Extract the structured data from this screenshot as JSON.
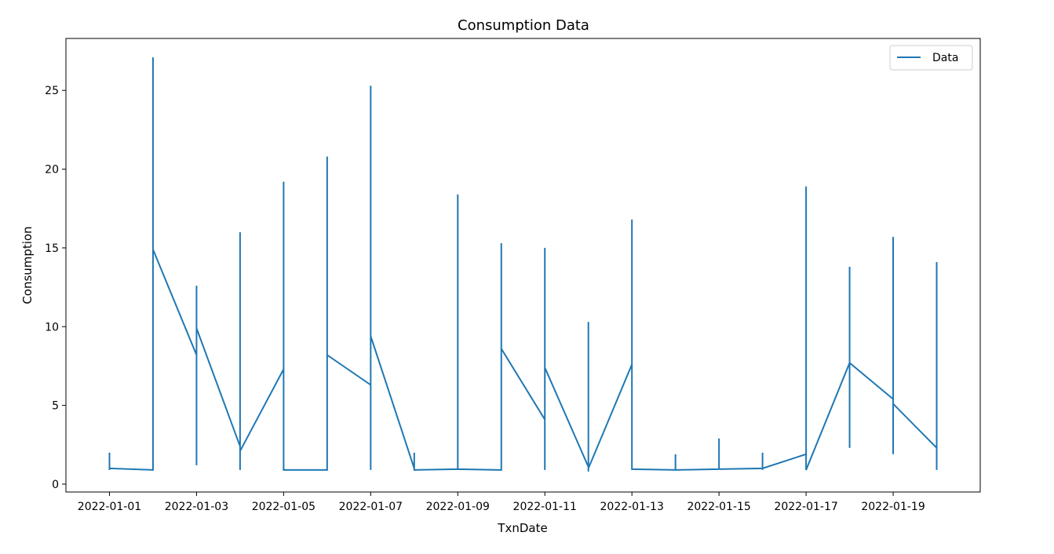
{
  "chart_data": {
    "type": "line",
    "title": "Consumption Data",
    "xlabel": "TxnDate",
    "ylabel": "Consumption",
    "xlim": [
      "2021-12-31",
      "2022-01-21"
    ],
    "ylim": [
      -0.5,
      28.3
    ],
    "x_ticks": [
      "2022-01-01",
      "2022-01-03",
      "2022-01-05",
      "2022-01-07",
      "2022-01-09",
      "2022-01-11",
      "2022-01-13",
      "2022-01-15",
      "2022-01-17",
      "2022-01-19"
    ],
    "y_ticks": [
      0,
      5,
      10,
      15,
      20,
      25
    ],
    "grid": false,
    "legend": {
      "position": "top-right",
      "entries": [
        "Data"
      ]
    },
    "series": [
      {
        "name": "Data",
        "color": "#1f77b4",
        "points": [
          [
            "2022-01-01",
            2.0
          ],
          [
            "2022-01-01",
            0.9
          ],
          [
            "2022-01-01",
            1.0
          ],
          [
            "2022-01-02",
            0.9
          ],
          [
            "2022-01-02",
            27.1
          ],
          [
            "2022-01-02",
            1.0
          ],
          [
            "2022-01-02",
            14.9
          ],
          [
            "2022-01-03",
            8.2
          ],
          [
            "2022-01-03",
            12.6
          ],
          [
            "2022-01-03",
            1.2
          ],
          [
            "2022-01-03",
            9.9
          ],
          [
            "2022-01-04",
            2.4
          ],
          [
            "2022-01-04",
            15.9
          ],
          [
            "2022-01-04",
            0.9
          ],
          [
            "2022-01-04",
            16.0
          ],
          [
            "2022-01-04",
            2.1
          ],
          [
            "2022-01-05",
            7.3
          ],
          [
            "2022-01-05",
            19.2
          ],
          [
            "2022-01-05",
            0.9
          ],
          [
            "2022-01-06",
            0.9
          ],
          [
            "2022-01-06",
            20.8
          ],
          [
            "2022-01-06",
            1.0
          ],
          [
            "2022-01-06",
            20.7
          ],
          [
            "2022-01-06",
            8.2
          ],
          [
            "2022-01-07",
            6.3
          ],
          [
            "2022-01-07",
            25.3
          ],
          [
            "2022-01-07",
            0.9
          ],
          [
            "2022-01-07",
            9.4
          ],
          [
            "2022-01-08",
            1.0
          ],
          [
            "2022-01-08",
            2.0
          ],
          [
            "2022-01-08",
            0.9
          ],
          [
            "2022-01-09",
            0.95
          ],
          [
            "2022-01-09",
            18.4
          ],
          [
            "2022-01-09",
            0.95
          ],
          [
            "2022-01-10",
            0.9
          ],
          [
            "2022-01-10",
            15.3
          ],
          [
            "2022-01-10",
            1.0
          ],
          [
            "2022-01-10",
            15.2
          ],
          [
            "2022-01-10",
            8.6
          ],
          [
            "2022-01-11",
            4.1
          ],
          [
            "2022-01-11",
            15.0
          ],
          [
            "2022-01-11",
            0.9
          ],
          [
            "2022-01-11",
            7.4
          ],
          [
            "2022-01-12",
            1.1
          ],
          [
            "2022-01-12",
            10.3
          ],
          [
            "2022-01-12",
            0.8
          ],
          [
            "2022-01-12",
            10.3
          ],
          [
            "2022-01-12",
            1.0
          ],
          [
            "2022-01-13",
            7.6
          ],
          [
            "2022-01-13",
            16.8
          ],
          [
            "2022-01-13",
            0.95
          ],
          [
            "2022-01-14",
            0.9
          ],
          [
            "2022-01-14",
            1.9
          ],
          [
            "2022-01-14",
            0.9
          ],
          [
            "2022-01-15",
            0.95
          ],
          [
            "2022-01-15",
            2.9
          ],
          [
            "2022-01-15",
            0.95
          ],
          [
            "2022-01-16",
            1.0
          ],
          [
            "2022-01-16",
            2.0
          ],
          [
            "2022-01-16",
            0.9
          ],
          [
            "2022-01-16",
            1.0
          ],
          [
            "2022-01-17",
            1.9
          ],
          [
            "2022-01-17",
            18.9
          ],
          [
            "2022-01-17",
            0.9
          ],
          [
            "2022-01-18",
            7.7
          ],
          [
            "2022-01-18",
            13.8
          ],
          [
            "2022-01-18",
            2.3
          ],
          [
            "2022-01-18",
            13.6
          ],
          [
            "2022-01-18",
            7.7
          ],
          [
            "2022-01-19",
            5.4
          ],
          [
            "2022-01-19",
            15.7
          ],
          [
            "2022-01-19",
            1.9
          ],
          [
            "2022-01-19",
            5.1
          ],
          [
            "2022-01-20",
            2.3
          ],
          [
            "2022-01-20",
            14.1
          ],
          [
            "2022-01-20",
            0.9
          ],
          [
            "2022-01-20",
            14.0
          ]
        ]
      }
    ]
  }
}
